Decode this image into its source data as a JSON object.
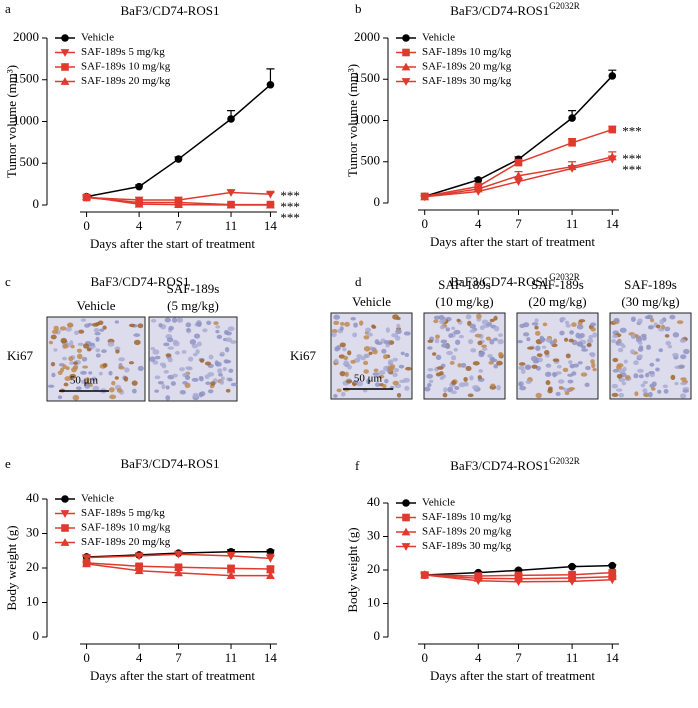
{
  "chart_data": [
    {
      "type": "line",
      "panel_label": "a",
      "title": "BaF3/CD74-ROS1",
      "x_label": "Days after the start of treatment",
      "y_label": "Tumor volume (mm³)",
      "x": [
        0,
        4,
        7,
        11,
        14
      ],
      "xlim": [
        -0.5,
        14.5
      ],
      "xticks": [
        0,
        4,
        7,
        11,
        14
      ],
      "ylim": [
        0,
        2000
      ],
      "yticks": [
        0,
        500,
        1000,
        1500,
        2000
      ],
      "legend": "upper left",
      "series": [
        {
          "name": "Vehicle",
          "color": "#000000",
          "marker": "circle",
          "values": [
            100,
            220,
            550,
            1030,
            1440
          ],
          "errors": [
            10,
            20,
            25,
            100,
            190
          ]
        },
        {
          "name": "SAF-189s 5 mg/kg",
          "color": "#e03a2e",
          "marker": "triangle-down",
          "values": [
            90,
            60,
            60,
            150,
            130
          ],
          "errors": [
            10,
            10,
            10,
            30,
            20
          ],
          "annotation": "***"
        },
        {
          "name": "SAF-189s 10 mg/kg",
          "color": "#e03a2e",
          "marker": "square",
          "values": [
            90,
            30,
            30,
            5,
            5
          ],
          "errors": [
            10,
            10,
            10,
            5,
            5
          ],
          "annotation": "***"
        },
        {
          "name": "SAF-189s 20 mg/kg",
          "color": "#e03a2e",
          "marker": "triangle-up",
          "values": [
            100,
            10,
            5,
            0,
            0
          ],
          "errors": [
            10,
            5,
            5,
            2,
            2
          ],
          "annotation": "***"
        }
      ]
    },
    {
      "type": "line",
      "panel_label": "b",
      "title": "BaF3/CD74-ROS1",
      "title_superscript": "G2032R",
      "x_label": "Days after the start of treatment",
      "y_label": "Tumor volume (mm³)",
      "x": [
        0,
        4,
        7,
        11,
        14
      ],
      "xlim": [
        -0.5,
        14.5
      ],
      "xticks": [
        0,
        4,
        7,
        11,
        14
      ],
      "ylim": [
        0,
        2000
      ],
      "yticks": [
        0,
        500,
        1000,
        1500,
        2000
      ],
      "legend": "upper left",
      "series": [
        {
          "name": "Vehicle",
          "color": "#000000",
          "marker": "circle",
          "values": [
            80,
            280,
            530,
            1030,
            1540
          ],
          "errors": [
            10,
            20,
            30,
            90,
            70
          ]
        },
        {
          "name": "SAF-189s 10 mg/kg",
          "color": "#e03a2e",
          "marker": "square",
          "values": [
            80,
            200,
            490,
            730,
            890
          ],
          "errors": [
            10,
            20,
            30,
            50,
            40
          ],
          "annotation": "***"
        },
        {
          "name": "SAF-189s 20 mg/kg",
          "color": "#e03a2e",
          "marker": "triangle-up",
          "values": [
            75,
            170,
            330,
            440,
            560
          ],
          "errors": [
            10,
            20,
            50,
            60,
            60
          ],
          "annotation": "***"
        },
        {
          "name": "SAF-189s 30 mg/kg",
          "color": "#e03a2e",
          "marker": "triangle-down",
          "values": [
            75,
            140,
            260,
            420,
            530
          ],
          "errors": [
            5,
            15,
            30,
            30,
            40
          ],
          "annotation": "***"
        }
      ]
    },
    {
      "type": "line",
      "panel_label": "e",
      "title": "BaF3/CD74-ROS1",
      "x_label": "Days after the start of treatment",
      "y_label": "Body weight  (g)",
      "x": [
        0,
        4,
        7,
        11,
        14
      ],
      "xlim": [
        -0.5,
        14.5
      ],
      "xticks": [
        0,
        4,
        7,
        11,
        14
      ],
      "ylim": [
        0,
        40
      ],
      "yticks": [
        0,
        10,
        20,
        30,
        40
      ],
      "legend": "upper left",
      "series": [
        {
          "name": "Vehicle",
          "color": "#000000",
          "marker": "circle",
          "values": [
            23.2,
            23.8,
            24.3,
            24.7,
            24.7
          ],
          "errors": [
            0.4,
            0.4,
            0.4,
            0.6,
            0.5
          ]
        },
        {
          "name": "SAF-189s 5 mg/kg",
          "color": "#e03a2e",
          "marker": "triangle-down",
          "values": [
            23,
            23.5,
            24,
            23.5,
            22.8
          ],
          "errors": [
            0.4,
            0.4,
            0.5,
            1,
            1.2
          ]
        },
        {
          "name": "SAF-189s 10 mg/kg",
          "color": "#e03a2e",
          "marker": "square",
          "values": [
            21.5,
            20.5,
            20.2,
            19.9,
            19.7
          ],
          "errors": [
            0.4,
            0.5,
            0.5,
            0.6,
            0.7
          ]
        },
        {
          "name": "SAF-189s 20 mg/kg",
          "color": "#e03a2e",
          "marker": "triangle-up",
          "values": [
            21.2,
            19.2,
            18.6,
            17.8,
            17.8
          ],
          "errors": [
            0.4,
            0.6,
            0.7,
            0.8,
            0.8
          ]
        }
      ]
    },
    {
      "type": "line",
      "panel_label": "f",
      "title": "BaF3/CD74-ROS1",
      "title_superscript": "G2032R",
      "x_label": "Days after the start of treatment",
      "y_label": "Body weight  (g)",
      "x": [
        0,
        4,
        7,
        11,
        14
      ],
      "xlim": [
        -0.5,
        14.5
      ],
      "xticks": [
        0,
        4,
        7,
        11,
        14
      ],
      "ylim": [
        0,
        40
      ],
      "yticks": [
        0,
        10,
        20,
        30,
        40
      ],
      "legend": "upper left",
      "series": [
        {
          "name": "Vehicle",
          "color": "#000000",
          "marker": "circle",
          "values": [
            18.5,
            19.2,
            19.9,
            21,
            21.3
          ],
          "errors": [
            0.4,
            0.3,
            0.3,
            0.3,
            0.3
          ]
        },
        {
          "name": "SAF-189s 10 mg/kg",
          "color": "#e03a2e",
          "marker": "square",
          "values": [
            18.5,
            18.2,
            18.4,
            18.6,
            19.2
          ],
          "errors": [
            0.5,
            0.4,
            0.4,
            0.4,
            0.4
          ]
        },
        {
          "name": "SAF-189s 20 mg/kg",
          "color": "#e03a2e",
          "marker": "triangle-up",
          "values": [
            18.6,
            17.5,
            17.4,
            17.6,
            18
          ],
          "errors": [
            0.5,
            0.4,
            0.4,
            0.4,
            0.4
          ]
        },
        {
          "name": "SAF-189s 30 mg/kg",
          "color": "#e03a2e",
          "marker": "triangle-down",
          "values": [
            18.5,
            16.8,
            16.5,
            16.6,
            17.1
          ],
          "errors": [
            0.5,
            0.4,
            0.4,
            0.4,
            0.4
          ]
        }
      ]
    }
  ],
  "ihc_panels": [
    {
      "panel_label": "c",
      "title": "BaF3/CD74-ROS1",
      "row_label": "Ki67",
      "scale_label": "50 μm",
      "columns": [
        [
          "Vehicle"
        ],
        [
          "SAF-189s",
          "(5 mg/kg)"
        ]
      ]
    },
    {
      "panel_label": "d",
      "title": "BaF3/CD74-ROS1",
      "title_superscript": "G2032R",
      "row_label": "Ki67",
      "scale_label": "50 μm",
      "columns": [
        [
          "Vehicle"
        ],
        [
          "SAF-189s",
          "(10 mg/kg)"
        ],
        [
          "SAF-189s",
          "(20 mg/kg)"
        ],
        [
          "SAF-189s",
          "(30 mg/kg)"
        ]
      ]
    }
  ]
}
